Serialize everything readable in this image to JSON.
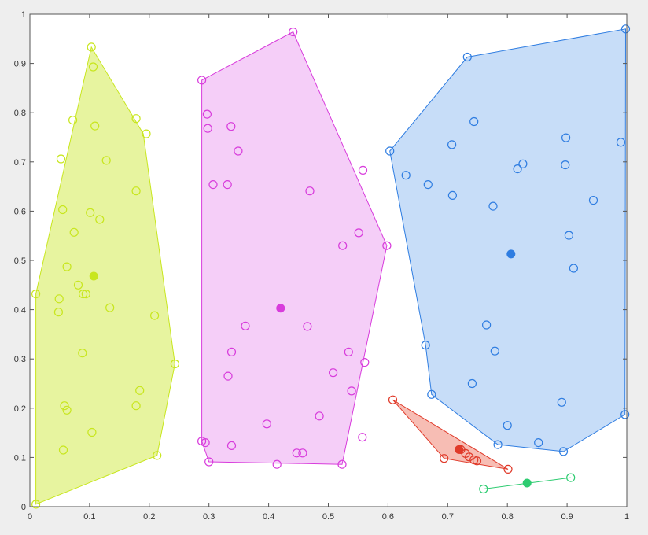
{
  "chart_data": {
    "type": "scatter",
    "xlim": [
      0,
      1
    ],
    "ylim": [
      0,
      1
    ],
    "grid": false,
    "xticks": [
      "0",
      "0.1",
      "0.2",
      "0.3",
      "0.4",
      "0.5",
      "0.6",
      "0.7",
      "0.8",
      "0.9",
      "1"
    ],
    "yticks": [
      "0",
      "0.1",
      "0.2",
      "0.3",
      "0.4",
      "0.5",
      "0.6",
      "0.7",
      "0.8",
      "0.9",
      "1"
    ],
    "clusters": [
      {
        "color": "#c8e61e",
        "fill": "#dff07f",
        "centroid": [
          0.107,
          0.468
        ],
        "hull": [
          [
            0.01,
            0.005
          ],
          [
            0.01,
            0.432
          ],
          [
            0.103,
            0.933
          ],
          [
            0.19,
            0.757
          ],
          [
            0.243,
            0.29
          ],
          [
            0.213,
            0.104
          ]
        ],
        "points": [
          [
            0.103,
            0.933
          ],
          [
            0.106,
            0.893
          ],
          [
            0.072,
            0.785
          ],
          [
            0.109,
            0.773
          ],
          [
            0.178,
            0.788
          ],
          [
            0.195,
            0.757
          ],
          [
            0.052,
            0.706
          ],
          [
            0.128,
            0.703
          ],
          [
            0.178,
            0.641
          ],
          [
            0.055,
            0.603
          ],
          [
            0.101,
            0.597
          ],
          [
            0.117,
            0.583
          ],
          [
            0.074,
            0.557
          ],
          [
            0.062,
            0.487
          ],
          [
            0.081,
            0.45
          ],
          [
            0.01,
            0.432
          ],
          [
            0.089,
            0.432
          ],
          [
            0.094,
            0.432
          ],
          [
            0.049,
            0.422
          ],
          [
            0.134,
            0.404
          ],
          [
            0.048,
            0.395
          ],
          [
            0.209,
            0.388
          ],
          [
            0.088,
            0.312
          ],
          [
            0.243,
            0.29
          ],
          [
            0.184,
            0.236
          ],
          [
            0.058,
            0.205
          ],
          [
            0.062,
            0.196
          ],
          [
            0.178,
            0.205
          ],
          [
            0.104,
            0.151
          ],
          [
            0.056,
            0.115
          ],
          [
            0.213,
            0.104
          ],
          [
            0.01,
            0.005
          ]
        ]
      },
      {
        "color": "#d83cdc",
        "fill": "#f2bdf5",
        "centroid": [
          0.42,
          0.403
        ],
        "hull": [
          [
            0.288,
            0.866
          ],
          [
            0.441,
            0.964
          ],
          [
            0.598,
            0.53
          ],
          [
            0.523,
            0.086
          ],
          [
            0.3,
            0.091
          ],
          [
            0.288,
            0.133
          ]
        ],
        "points": [
          [
            0.441,
            0.964
          ],
          [
            0.288,
            0.866
          ],
          [
            0.297,
            0.797
          ],
          [
            0.337,
            0.772
          ],
          [
            0.298,
            0.768
          ],
          [
            0.349,
            0.722
          ],
          [
            0.558,
            0.683
          ],
          [
            0.307,
            0.654
          ],
          [
            0.331,
            0.654
          ],
          [
            0.469,
            0.641
          ],
          [
            0.551,
            0.556
          ],
          [
            0.524,
            0.53
          ],
          [
            0.598,
            0.53
          ],
          [
            0.361,
            0.367
          ],
          [
            0.465,
            0.366
          ],
          [
            0.338,
            0.314
          ],
          [
            0.534,
            0.314
          ],
          [
            0.561,
            0.293
          ],
          [
            0.332,
            0.265
          ],
          [
            0.508,
            0.272
          ],
          [
            0.539,
            0.235
          ],
          [
            0.485,
            0.184
          ],
          [
            0.397,
            0.168
          ],
          [
            0.557,
            0.141
          ],
          [
            0.288,
            0.133
          ],
          [
            0.294,
            0.13
          ],
          [
            0.338,
            0.124
          ],
          [
            0.447,
            0.109
          ],
          [
            0.457,
            0.109
          ],
          [
            0.3,
            0.091
          ],
          [
            0.414,
            0.086
          ],
          [
            0.523,
            0.086
          ]
        ]
      },
      {
        "color": "#2f7de1",
        "fill": "#b4d2f5",
        "centroid": [
          0.806,
          0.513
        ],
        "hull": [
          [
            0.603,
            0.722
          ],
          [
            0.733,
            0.913
          ],
          [
            0.998,
            0.97
          ],
          [
            0.997,
            0.187
          ],
          [
            0.894,
            0.112
          ],
          [
            0.784,
            0.126
          ],
          [
            0.673,
            0.228
          ],
          [
            0.663,
            0.328
          ]
        ],
        "points": [
          [
            0.998,
            0.97
          ],
          [
            0.733,
            0.913
          ],
          [
            0.744,
            0.782
          ],
          [
            0.898,
            0.749
          ],
          [
            0.707,
            0.735
          ],
          [
            0.99,
            0.74
          ],
          [
            0.603,
            0.722
          ],
          [
            0.826,
            0.696
          ],
          [
            0.897,
            0.694
          ],
          [
            0.817,
            0.686
          ],
          [
            0.63,
            0.673
          ],
          [
            0.667,
            0.654
          ],
          [
            0.708,
            0.632
          ],
          [
            0.944,
            0.622
          ],
          [
            0.776,
            0.61
          ],
          [
            0.903,
            0.551
          ],
          [
            0.911,
            0.484
          ],
          [
            0.765,
            0.369
          ],
          [
            0.663,
            0.328
          ],
          [
            0.779,
            0.316
          ],
          [
            0.741,
            0.25
          ],
          [
            0.673,
            0.228
          ],
          [
            0.891,
            0.212
          ],
          [
            0.997,
            0.187
          ],
          [
            0.8,
            0.165
          ],
          [
            0.852,
            0.13
          ],
          [
            0.784,
            0.126
          ],
          [
            0.894,
            0.112
          ]
        ]
      },
      {
        "color": "#e03a2a",
        "fill": "#f4a79b",
        "centroid": [
          0.719,
          0.116
        ],
        "hull": [
          [
            0.608,
            0.217
          ],
          [
            0.801,
            0.076
          ],
          [
            0.694,
            0.098
          ]
        ],
        "points": [
          [
            0.608,
            0.217
          ],
          [
            0.722,
            0.116
          ],
          [
            0.73,
            0.108
          ],
          [
            0.736,
            0.101
          ],
          [
            0.744,
            0.095
          ],
          [
            0.749,
            0.093
          ],
          [
            0.694,
            0.098
          ],
          [
            0.801,
            0.076
          ]
        ]
      },
      {
        "color": "#2ecc71",
        "fill": "#2ecc71",
        "centroid": [
          0.833,
          0.048
        ],
        "hull": [
          [
            0.76,
            0.036
          ],
          [
            0.906,
            0.059
          ]
        ],
        "points": [
          [
            0.76,
            0.036
          ],
          [
            0.906,
            0.059
          ]
        ]
      }
    ]
  }
}
